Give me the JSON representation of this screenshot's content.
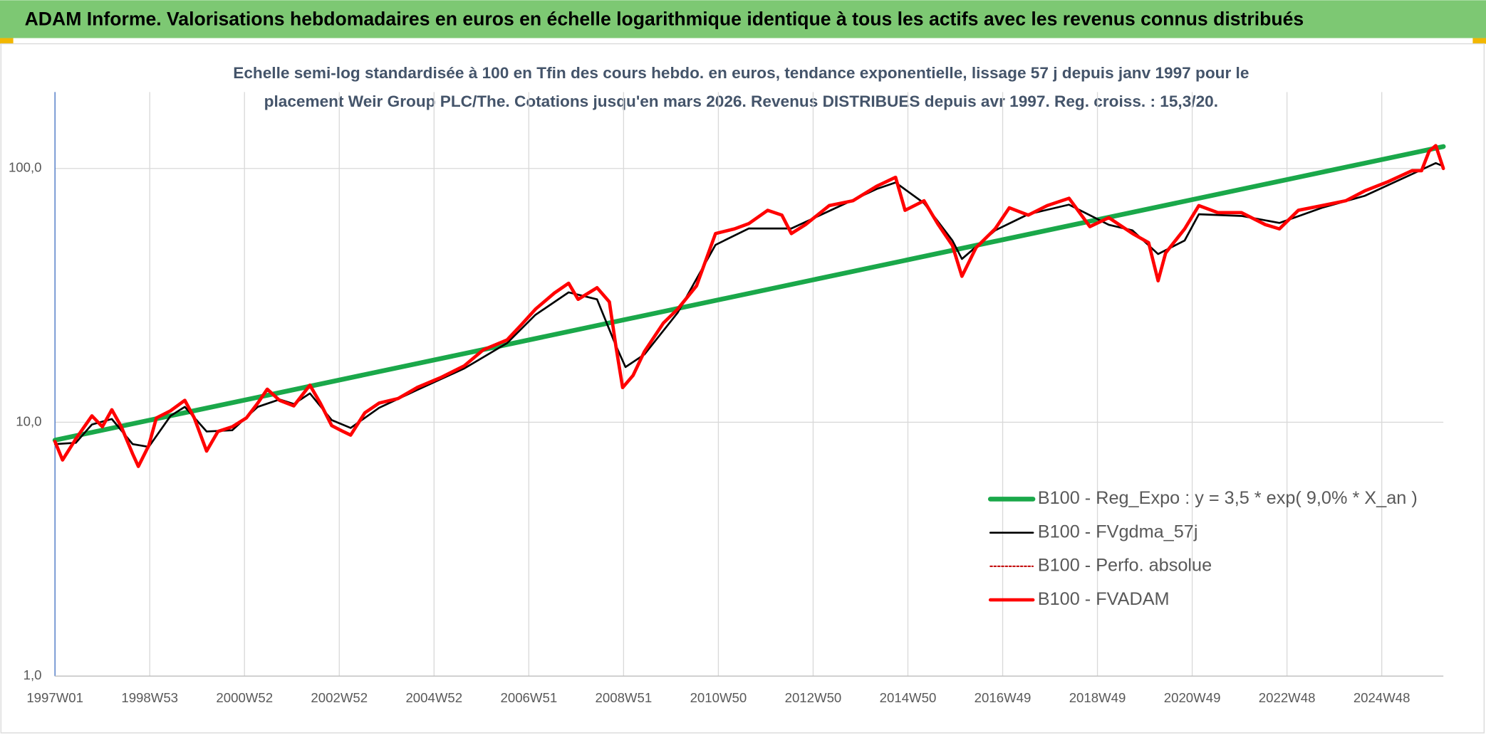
{
  "header": {
    "title": "ADAM Informe. Valorisations hebdomadaires en euros en échelle logarithmique identique à tous les actifs avec les revenus connus distribués"
  },
  "chart_data": {
    "type": "line",
    "subtitle": [
      "Echelle semi-log standardisée à 100 en Tfin des cours hebdo. en euros, tendance exponentielle, lissage 57 j depuis janv 1997 pour le",
      "placement Weir Group PLC/The. Cotations jusqu'en mars 2026. Revenus DISTRIBUES depuis avr 1997. Reg. croiss. : 15,3/20."
    ],
    "log_y": true,
    "grid": true,
    "legend_position": "right",
    "ylim": [
      1,
      200
    ],
    "yticks": [
      {
        "value": 1,
        "label": "1,0"
      },
      {
        "value": 10,
        "label": "10,0"
      },
      {
        "value": 100,
        "label": "100,0"
      }
    ],
    "xlim": [
      1997.0,
      2026.3
    ],
    "xticks": [
      {
        "value": 1997,
        "label": "1997W01"
      },
      {
        "value": 1999,
        "label": "1998W53"
      },
      {
        "value": 2001,
        "label": "2000W52"
      },
      {
        "value": 2003,
        "label": "2002W52"
      },
      {
        "value": 2005,
        "label": "2004W52"
      },
      {
        "value": 2007,
        "label": "2006W51"
      },
      {
        "value": 2009,
        "label": "2008W51"
      },
      {
        "value": 2011,
        "label": "2010W50"
      },
      {
        "value": 2013,
        "label": "2012W50"
      },
      {
        "value": 2015,
        "label": "2014W50"
      },
      {
        "value": 2017,
        "label": "2016W49"
      },
      {
        "value": 2019,
        "label": "2018W49"
      },
      {
        "value": 2021,
        "label": "2020W49"
      },
      {
        "value": 2023,
        "label": "2022W48"
      },
      {
        "value": 2025,
        "label": "2024W48"
      }
    ],
    "series": [
      {
        "name": "B100 - Reg_Expo : y = 3,5 * exp( 9,0% *  X_an )",
        "color": "#1aa84a",
        "line_style": "solid",
        "x": [
          1997.0,
          2026.3
        ],
        "values": [
          8.5,
          122
        ]
      },
      {
        "name": "B100 - FVgdma_57j",
        "color": "#000000",
        "line_style": "solid",
        "x": [
          1997.0,
          1997.44,
          1997.78,
          1998.2,
          1998.64,
          1998.98,
          1999.44,
          1999.74,
          2000.2,
          2000.74,
          2001.28,
          2001.74,
          2002.04,
          2002.38,
          2002.84,
          2003.24,
          2003.84,
          2004.64,
          2005.64,
          2006.54,
          2007.14,
          2007.84,
          2008.44,
          2008.84,
          2009.04,
          2009.44,
          2010.14,
          2010.94,
          2011.64,
          2012.54,
          2013.34,
          2014.34,
          2014.74,
          2015.34,
          2015.94,
          2016.14,
          2016.84,
          2017.54,
          2018.4,
          2019.24,
          2019.74,
          2020.28,
          2020.84,
          2021.14,
          2022.04,
          2022.84,
          2023.74,
          2024.64,
          2025.64,
          2026.14,
          2026.3
        ],
        "values": [
          8.2,
          8.3,
          9.8,
          10.3,
          8.2,
          8.0,
          10.6,
          11.5,
          9.2,
          9.3,
          11.5,
          12.3,
          11.8,
          13.0,
          10.2,
          9.5,
          11.4,
          13.4,
          16.3,
          20.5,
          26.5,
          32.5,
          30.5,
          20,
          16.5,
          18.5,
          27,
          50,
          58,
          58,
          68,
          83,
          88,
          73,
          52,
          44,
          57,
          66,
          72,
          60,
          57,
          46,
          52,
          66,
          65,
          61,
          70,
          78,
          95,
          105,
          102
        ]
      },
      {
        "name": "B100 - Perfo. absolue",
        "color": "#c00000",
        "line_style": "dotted",
        "x": [
          1997.0,
          1997.16,
          1997.44,
          1997.78,
          1998.0,
          1998.2,
          1998.4,
          1998.64,
          1998.76,
          1998.98,
          1999.14,
          1999.44,
          1999.74,
          1999.94,
          2000.2,
          2000.44,
          2000.74,
          2001.04,
          2001.28,
          2001.48,
          2001.74,
          2002.04,
          2002.38,
          2002.6,
          2002.84,
          2003.08,
          2003.24,
          2003.54,
          2003.84,
          2004.24,
          2004.64,
          2005.14,
          2005.64,
          2006.04,
          2006.54,
          2006.84,
          2007.14,
          2007.54,
          2007.84,
          2008.04,
          2008.44,
          2008.7,
          2008.84,
          2008.98,
          2009.2,
          2009.44,
          2009.84,
          2010.14,
          2010.54,
          2010.94,
          2011.34,
          2011.64,
          2012.04,
          2012.34,
          2012.54,
          2012.84,
          2013.34,
          2013.84,
          2014.34,
          2014.74,
          2014.94,
          2015.34,
          2015.64,
          2015.94,
          2016.14,
          2016.44,
          2016.84,
          2017.14,
          2017.54,
          2017.94,
          2018.4,
          2018.84,
          2019.24,
          2019.74,
          2020.08,
          2020.28,
          2020.44,
          2020.84,
          2021.14,
          2021.54,
          2022.04,
          2022.54,
          2022.84,
          2023.24,
          2023.74,
          2024.24,
          2024.64,
          2025.14,
          2025.64,
          2025.84,
          2026.0,
          2026.14,
          2026.3
        ],
        "values": [
          8.4,
          7.1,
          8.6,
          10.6,
          9.6,
          11.2,
          9.6,
          7.5,
          6.7,
          8.1,
          10.4,
          11.1,
          12.2,
          10.4,
          7.7,
          9.2,
          9.6,
          10.4,
          11.9,
          13.5,
          12.2,
          11.6,
          14.0,
          11.9,
          9.7,
          9.2,
          8.9,
          10.9,
          11.9,
          12.4,
          13.7,
          15.0,
          16.7,
          19.3,
          21.1,
          24.2,
          27.9,
          32.3,
          35.3,
          30.5,
          33.9,
          29.8,
          19.8,
          13.7,
          15.3,
          19.0,
          24.6,
          27.9,
          34.5,
          55.4,
          57.8,
          60.6,
          68.4,
          65.5,
          55.4,
          60.1,
          71.4,
          74.6,
          85.1,
          92.3,
          68.4,
          74.6,
          60.1,
          49.7,
          37.6,
          48.8,
          57.8,
          70.0,
          65.5,
          71.4,
          76.3,
          59.0,
          64.0,
          55.4,
          51.0,
          36.1,
          46.5,
          57.8,
          71.4,
          67.0,
          67.0,
          60.1,
          57.8,
          68.4,
          71.4,
          74.6,
          81.6,
          88.8,
          98.0,
          98.0,
          117,
          123,
          100
        ]
      },
      {
        "name": "B100 - FVADAM",
        "color": "#ff0000",
        "line_style": "solid",
        "x": [
          1997.0,
          1997.16,
          1997.44,
          1997.78,
          1998.0,
          1998.2,
          1998.4,
          1998.64,
          1998.76,
          1998.98,
          1999.14,
          1999.44,
          1999.74,
          1999.94,
          2000.2,
          2000.44,
          2000.74,
          2001.04,
          2001.28,
          2001.48,
          2001.74,
          2002.04,
          2002.38,
          2002.6,
          2002.84,
          2003.08,
          2003.24,
          2003.54,
          2003.84,
          2004.24,
          2004.64,
          2005.14,
          2005.64,
          2006.04,
          2006.54,
          2006.84,
          2007.14,
          2007.54,
          2007.84,
          2008.04,
          2008.44,
          2008.7,
          2008.84,
          2008.98,
          2009.2,
          2009.44,
          2009.84,
          2010.14,
          2010.54,
          2010.94,
          2011.34,
          2011.64,
          2012.04,
          2012.34,
          2012.54,
          2012.84,
          2013.34,
          2013.84,
          2014.34,
          2014.74,
          2014.94,
          2015.34,
          2015.64,
          2015.94,
          2016.14,
          2016.44,
          2016.84,
          2017.14,
          2017.54,
          2017.94,
          2018.4,
          2018.84,
          2019.24,
          2019.74,
          2020.08,
          2020.28,
          2020.44,
          2020.84,
          2021.14,
          2021.54,
          2022.04,
          2022.54,
          2022.84,
          2023.24,
          2023.74,
          2024.24,
          2024.64,
          2025.14,
          2025.64,
          2025.84,
          2026.0,
          2026.14,
          2026.3
        ],
        "values": [
          8.4,
          7.1,
          8.6,
          10.6,
          9.6,
          11.2,
          9.6,
          7.5,
          6.7,
          8.1,
          10.4,
          11.1,
          12.2,
          10.4,
          7.7,
          9.2,
          9.6,
          10.4,
          11.9,
          13.5,
          12.2,
          11.6,
          14.0,
          11.9,
          9.7,
          9.2,
          8.9,
          10.9,
          11.9,
          12.4,
          13.7,
          15.0,
          16.7,
          19.3,
          21.1,
          24.2,
          27.9,
          32.3,
          35.3,
          30.5,
          33.9,
          29.8,
          19.8,
          13.7,
          15.3,
          19.0,
          24.6,
          27.9,
          34.5,
          55.4,
          57.8,
          60.6,
          68.4,
          65.5,
          55.4,
          60.1,
          71.4,
          74.6,
          85.1,
          92.3,
          68.4,
          74.6,
          60.1,
          49.7,
          37.6,
          48.8,
          57.8,
          70.0,
          65.5,
          71.4,
          76.3,
          59.0,
          64.0,
          55.4,
          51.0,
          36.1,
          46.5,
          57.8,
          71.4,
          67.0,
          67.0,
          60.1,
          57.8,
          68.4,
          71.4,
          74.6,
          81.6,
          88.8,
          98.0,
          98.0,
          117,
          123,
          100
        ]
      }
    ]
  }
}
